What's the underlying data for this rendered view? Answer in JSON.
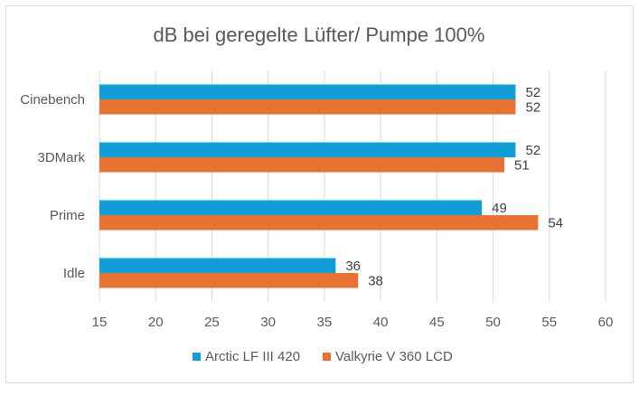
{
  "chart_data": {
    "type": "bar",
    "orientation": "horizontal",
    "title": "dB bei geregelte Lüfter/ Pumpe 100%",
    "categories": [
      "Cinebench",
      "3DMark",
      "Prime",
      "Idle"
    ],
    "series": [
      {
        "name": "Arctic LF III 420",
        "color": "#0F9ED5",
        "values": [
          52,
          52,
          49,
          36
        ]
      },
      {
        "name": "Valkyrie V 360 LCD",
        "color": "#E97132",
        "values": [
          52,
          51,
          54,
          38
        ]
      }
    ],
    "xlim": [
      15,
      60
    ],
    "xticks": [
      15,
      20,
      25,
      30,
      35,
      40,
      45,
      50,
      55,
      60
    ],
    "grid": true,
    "legend": "bottom"
  }
}
